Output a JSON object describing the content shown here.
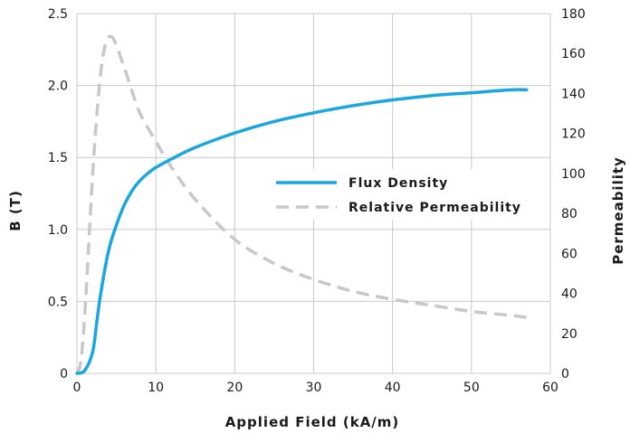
{
  "chart_data": {
    "type": "line",
    "xlabel": "Applied Field (kA/m)",
    "ylabel_left": "B (T)",
    "ylabel_right": "Permeability",
    "xlim": [
      0,
      60
    ],
    "ylim_left": [
      0,
      2.5
    ],
    "ylim_right": [
      0,
      180
    ],
    "x_ticks": [
      "0",
      "10",
      "20",
      "30",
      "40",
      "50",
      "60"
    ],
    "y_left_ticks": [
      "0",
      "0.5",
      "1.0",
      "1.5",
      "2.0",
      "2.5"
    ],
    "y_right_ticks": [
      "0",
      "20",
      "40",
      "60",
      "80",
      "100",
      "120",
      "140",
      "160",
      "180"
    ],
    "grid": true,
    "legend_position": "right-center",
    "series": [
      {
        "name": "Flux Density",
        "axis": "left",
        "color": "#1aa7e0",
        "style": "solid",
        "points": [
          [
            0,
            0
          ],
          [
            1,
            0.02
          ],
          [
            2,
            0.15
          ],
          [
            2.5,
            0.35
          ],
          [
            3,
            0.55
          ],
          [
            4,
            0.85
          ],
          [
            5,
            1.03
          ],
          [
            6,
            1.17
          ],
          [
            7,
            1.27
          ],
          [
            8,
            1.34
          ],
          [
            9,
            1.39
          ],
          [
            10,
            1.43
          ],
          [
            12,
            1.49
          ],
          [
            15,
            1.57
          ],
          [
            20,
            1.67
          ],
          [
            25,
            1.75
          ],
          [
            30,
            1.81
          ],
          [
            35,
            1.86
          ],
          [
            40,
            1.9
          ],
          [
            45,
            1.93
          ],
          [
            50,
            1.95
          ],
          [
            55,
            1.97
          ],
          [
            57,
            1.97
          ]
        ]
      },
      {
        "name": "Relative Permeability",
        "axis": "right",
        "color": "#c8c8c8",
        "style": "dashed",
        "points": [
          [
            0,
            0
          ],
          [
            0.5,
            6
          ],
          [
            1,
            30
          ],
          [
            1.5,
            65
          ],
          [
            2,
            100
          ],
          [
            2.5,
            128
          ],
          [
            3,
            150
          ],
          [
            3.5,
            163
          ],
          [
            4,
            168
          ],
          [
            4.5,
            168
          ],
          [
            5,
            164
          ],
          [
            6,
            153
          ],
          [
            7,
            141
          ],
          [
            8,
            130
          ],
          [
            10,
            116
          ],
          [
            12,
            103
          ],
          [
            15,
            87
          ],
          [
            20,
            67
          ],
          [
            25,
            55
          ],
          [
            30,
            47
          ],
          [
            35,
            41
          ],
          [
            40,
            37
          ],
          [
            45,
            34
          ],
          [
            50,
            31
          ],
          [
            55,
            29
          ],
          [
            57,
            28
          ]
        ]
      }
    ]
  }
}
